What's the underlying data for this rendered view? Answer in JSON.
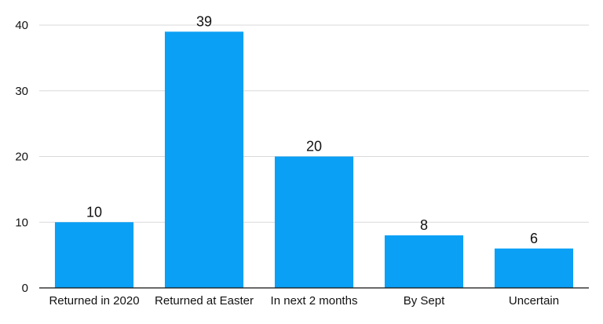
{
  "chart_data": {
    "type": "bar",
    "title": "",
    "xlabel": "",
    "ylabel": "",
    "categories": [
      "Returned in 2020",
      "Returned at Easter",
      "In next 2 months",
      "By Sept",
      "Uncertain"
    ],
    "values": [
      10,
      39,
      20,
      8,
      6
    ],
    "data_labels": [
      "10",
      "39",
      "20",
      "8",
      "6"
    ],
    "ylim": [
      0,
      40
    ],
    "yticks": [
      0,
      10,
      20,
      30,
      40
    ],
    "ytick_labels": [
      "0",
      "10",
      "20",
      "30",
      "40"
    ],
    "grid": true,
    "legend": "none",
    "colors": {
      "bar": "#0aa0f5",
      "grid": "#d9d9d9",
      "axis": "#111111"
    }
  }
}
